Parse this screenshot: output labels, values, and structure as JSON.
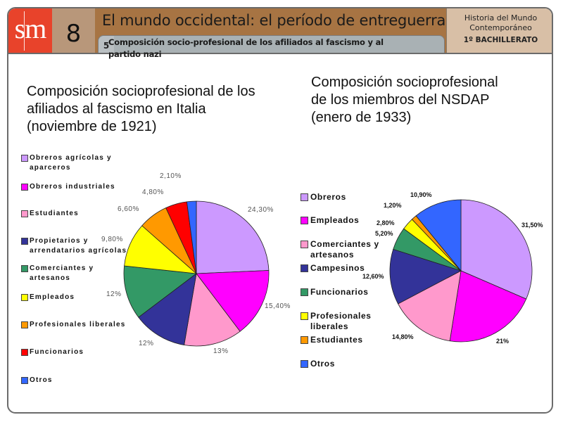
{
  "header": {
    "logo": "sm",
    "unit_number": "8",
    "title": "El mundo occidental: el período de entreguerras",
    "section_number": "5",
    "section_title": "Composición socio-profesional de los afiliados al fascismo y al partido nazi",
    "course_line1": "Historia del Mundo",
    "course_line2": "Contemporáneo",
    "course_level": "1º BACHILLERATO"
  },
  "chart_data": [
    {
      "type": "pie",
      "title": "Composición socioprofesional de los afiliados al fascismo en Italia (noviembre de 1921)",
      "title_lines": [
        "Composición socioprofesional de los",
        "afiliados al fascismo en Italia",
        "(noviembre de 1921)"
      ],
      "legend_position": "left",
      "categories": [
        "Obreros agrícolas y aparceros",
        "Obreros industriales",
        "Estudiantes",
        "Propietarios y arrendatarios agrícolas",
        "Comerciantes y artesanos",
        "Empleados",
        "Profesionales liberales",
        "Funcionarios",
        "Otros"
      ],
      "values": [
        24.3,
        15.4,
        13,
        12,
        12,
        9.8,
        6.6,
        4.8,
        2.1
      ],
      "labels": [
        "24,30%",
        "15,40%",
        "13%",
        "12%",
        "12%",
        "9,80%",
        "6,60%",
        "4,80%",
        "2,10%"
      ],
      "colors": [
        "#cc99ff",
        "#ff00ff",
        "#ff99cc",
        "#333399",
        "#339966",
        "#ffff00",
        "#ff9900",
        "#ff0000",
        "#3366ff"
      ]
    },
    {
      "type": "pie",
      "title": "Composición socioprofesional de los miembros del NSDAP (enero de 1933)",
      "title_lines": [
        "Composición socioprofesional",
        "de los miembros del NSDAP",
        "(enero de 1933)"
      ],
      "legend_position": "left",
      "categories": [
        "Obreros",
        "Empleados",
        "Comerciantes y artesanos",
        "Campesinos",
        "Funcionarios",
        "Profesionales liberales",
        "Estudiantes",
        "Otros"
      ],
      "values": [
        31.5,
        21,
        14.8,
        12.6,
        5.2,
        2.8,
        1.2,
        10.9
      ],
      "labels": [
        "31,50%",
        "21%",
        "14,80%",
        "12,60%",
        "5,20%",
        "2,80%",
        "1,20%",
        "10,90%"
      ],
      "colors": [
        "#cc99ff",
        "#ff00ff",
        "#ff99cc",
        "#333399",
        "#339966",
        "#ffff00",
        "#ff9900",
        "#3366ff"
      ]
    }
  ],
  "legend_italy": [
    {
      "line1": "Obreros agrícolas y",
      "line2": "aparceros"
    },
    {
      "line1": "Obreros industriales",
      "line2": ""
    },
    {
      "line1": "Estudiantes",
      "line2": ""
    },
    {
      "line1": "Propietarios y",
      "line2": "arrendatarios agrícolas"
    },
    {
      "line1": "Comerciantes y",
      "line2": "artesanos"
    },
    {
      "line1": "Empleados",
      "line2": ""
    },
    {
      "line1": "Profesionales liberales",
      "line2": ""
    },
    {
      "line1": "Funcionarios",
      "line2": ""
    },
    {
      "line1": "Otros",
      "line2": ""
    }
  ],
  "legend_nsdap": [
    {
      "line1": "Obreros",
      "line2": ""
    },
    {
      "line1": "Empleados",
      "line2": ""
    },
    {
      "line1": "Comerciantes y",
      "line2": "artesanos"
    },
    {
      "line1": "Campesinos",
      "line2": ""
    },
    {
      "line1": "Funcionarios",
      "line2": ""
    },
    {
      "line1": "Profesionales",
      "line2": "liberales"
    },
    {
      "line1": "Estudiantes",
      "line2": ""
    },
    {
      "line1": "Otros",
      "line2": ""
    }
  ]
}
